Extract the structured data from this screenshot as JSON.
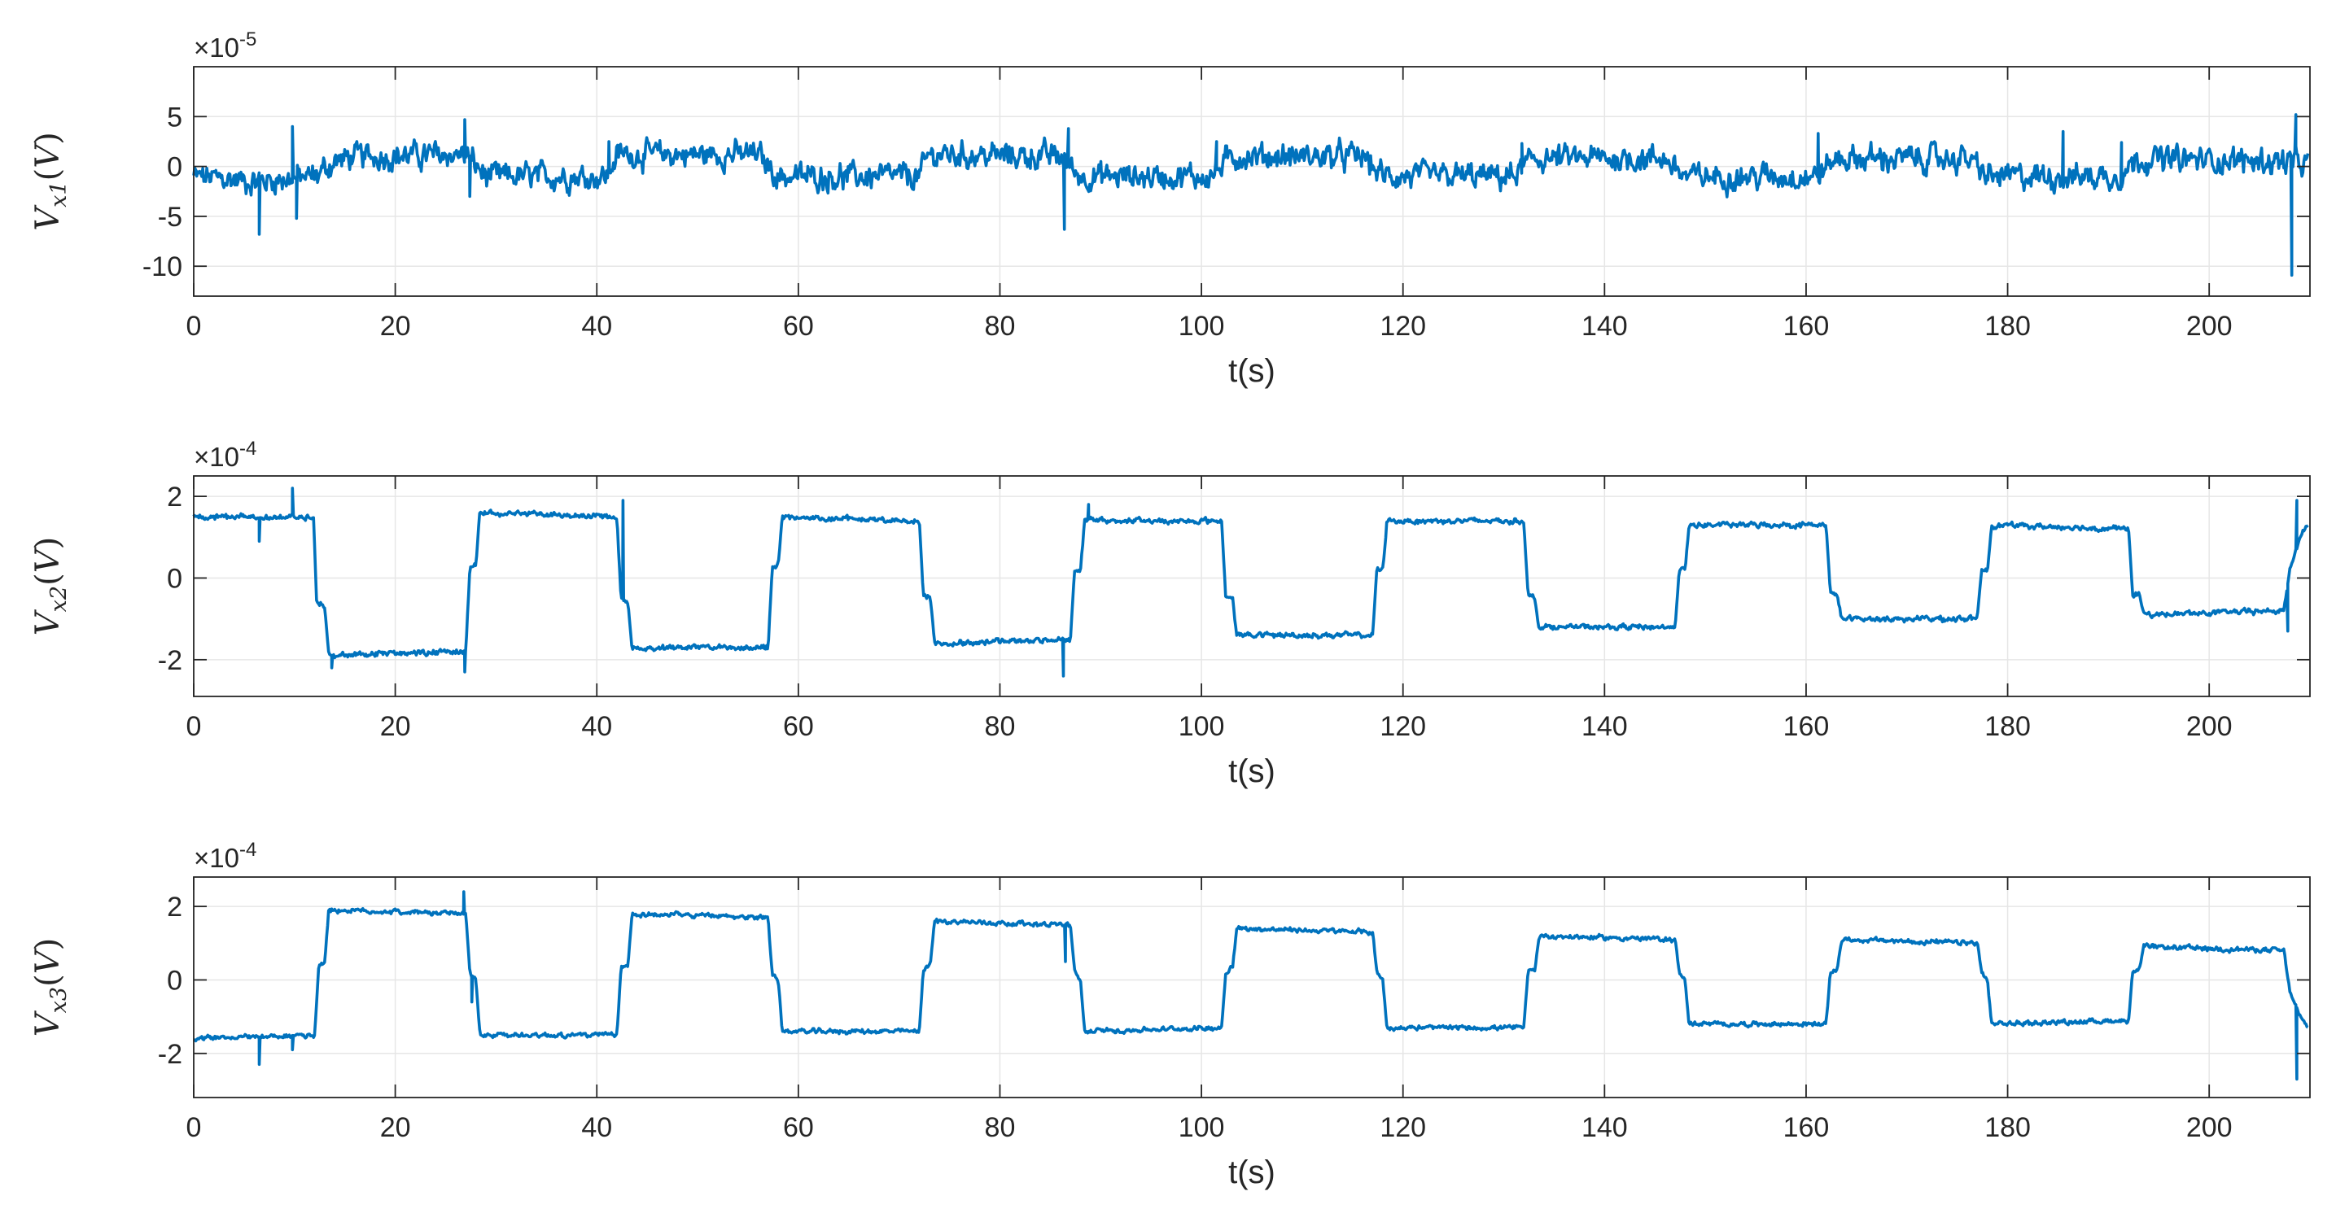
{
  "colors": {
    "line": "#0072BD",
    "axis": "#262626",
    "grid": "#e6e6e6",
    "background": "#ffffff"
  },
  "chart_data": [
    {
      "type": "line",
      "title": "",
      "xlabel": "t(s)",
      "ylabel": {
        "base": "V",
        "sub": "x1",
        "open": "(",
        "unit": "V",
        "close": ")"
      },
      "exponent": "×10",
      "exponent_power": "-5",
      "xlim": [
        0,
        210
      ],
      "ylim": [
        -13,
        10
      ],
      "xticks": [
        0,
        20,
        40,
        60,
        80,
        100,
        120,
        140,
        160,
        180,
        200
      ],
      "xtick_labels": [
        "0",
        "20",
        "40",
        "60",
        "80",
        "100",
        "120",
        "140",
        "160",
        "180",
        "200"
      ],
      "yticks": [
        -10,
        -5,
        0,
        5
      ],
      "ytick_labels": [
        "-10",
        "-5",
        "0",
        "5"
      ],
      "grid": true,
      "noise_amplitude": 1.8,
      "baseline": [
        [
          0,
          -1
        ],
        [
          6,
          -1.5
        ],
        [
          12,
          -1
        ],
        [
          14,
          0.5
        ],
        [
          16,
          1
        ],
        [
          27,
          1.2
        ],
        [
          29,
          -1
        ],
        [
          41,
          -1
        ],
        [
          42,
          1.2
        ],
        [
          56,
          1.2
        ],
        [
          58,
          -1
        ],
        [
          72,
          -1
        ],
        [
          73,
          1.2
        ],
        [
          86,
          1
        ],
        [
          88,
          -1
        ],
        [
          101,
          -1
        ],
        [
          103,
          1
        ],
        [
          116,
          1
        ],
        [
          118,
          -1
        ],
        [
          131,
          -1
        ],
        [
          133,
          0.8
        ],
        [
          146,
          0.8
        ],
        [
          148,
          -1
        ],
        [
          161,
          -1
        ],
        [
          163,
          0.8
        ],
        [
          176,
          0.8
        ],
        [
          178,
          -1
        ],
        [
          191,
          -1
        ],
        [
          193,
          0.8
        ],
        [
          208,
          0.5
        ],
        [
          210,
          0
        ]
      ],
      "spikes": [
        [
          6.5,
          -6.8
        ],
        [
          9.8,
          4
        ],
        [
          10.2,
          -5.2
        ],
        [
          26.9,
          4.7
        ],
        [
          27.4,
          -3
        ],
        [
          41.2,
          2.5
        ],
        [
          86.4,
          -6.3
        ],
        [
          86.8,
          3.8
        ],
        [
          101.5,
          2.5
        ],
        [
          131.8,
          2.3
        ],
        [
          161.2,
          3.3
        ],
        [
          185.5,
          3.5
        ],
        [
          191.3,
          2.4
        ],
        [
          208.2,
          -10.9
        ],
        [
          208.6,
          5.2
        ]
      ]
    },
    {
      "type": "line",
      "title": "",
      "xlabel": "t(s)",
      "ylabel": {
        "base": "V",
        "sub": "x2",
        "open": "(",
        "unit": "V",
        "close": ")"
      },
      "exponent": "×10",
      "exponent_power": "-4",
      "xlim": [
        0,
        210
      ],
      "ylim": [
        -2.9,
        2.5
      ],
      "xticks": [
        0,
        20,
        40,
        60,
        80,
        100,
        120,
        140,
        160,
        180,
        200
      ],
      "xtick_labels": [
        "0",
        "20",
        "40",
        "60",
        "80",
        "100",
        "120",
        "140",
        "160",
        "180",
        "200"
      ],
      "yticks": [
        -2,
        0,
        2
      ],
      "ytick_labels": [
        "-2",
        "0",
        "2"
      ],
      "grid": true,
      "noise_amplitude": 0.09,
      "baseline": [
        [
          0,
          1.5
        ],
        [
          11.9,
          1.5
        ],
        [
          12.2,
          -0.6
        ],
        [
          13,
          -0.7
        ],
        [
          13.4,
          -1.9
        ],
        [
          27,
          -1.8
        ],
        [
          27.4,
          0.2
        ],
        [
          28,
          0.3
        ],
        [
          28.4,
          1.6
        ],
        [
          42,
          1.5
        ],
        [
          42.4,
          -0.5
        ],
        [
          43.1,
          -0.6
        ],
        [
          43.5,
          -1.7
        ],
        [
          57,
          -1.7
        ],
        [
          57.4,
          0.2
        ],
        [
          58,
          0.3
        ],
        [
          58.4,
          1.5
        ],
        [
          72,
          1.4
        ],
        [
          72.4,
          -0.4
        ],
        [
          73.1,
          -0.5
        ],
        [
          73.5,
          -1.6
        ],
        [
          87,
          -1.5
        ],
        [
          87.4,
          0.2
        ],
        [
          88,
          0.2
        ],
        [
          88.4,
          1.4
        ],
        [
          102,
          1.4
        ],
        [
          102.4,
          -0.4
        ],
        [
          103.1,
          -0.5
        ],
        [
          103.5,
          -1.4
        ],
        [
          117,
          -1.4
        ],
        [
          117.4,
          0.2
        ],
        [
          118,
          0.2
        ],
        [
          118.4,
          1.4
        ],
        [
          132,
          1.4
        ],
        [
          132.4,
          -0.4
        ],
        [
          133.1,
          -0.5
        ],
        [
          133.5,
          -1.2
        ],
        [
          147,
          -1.2
        ],
        [
          147.4,
          0.2
        ],
        [
          148,
          0.2
        ],
        [
          148.4,
          1.3
        ],
        [
          162,
          1.3
        ],
        [
          162.4,
          -0.4
        ],
        [
          163.1,
          -0.4
        ],
        [
          163.5,
          -1.0
        ],
        [
          177,
          -1.0
        ],
        [
          177.4,
          0.2
        ],
        [
          178,
          0.2
        ],
        [
          178.4,
          1.3
        ],
        [
          192,
          1.2
        ],
        [
          192.4,
          -0.4
        ],
        [
          193.1,
          -0.4
        ],
        [
          193.5,
          -0.9
        ],
        [
          207.4,
          -0.8
        ],
        [
          208,
          0.2
        ],
        [
          209,
          1.0
        ],
        [
          210,
          1.4
        ]
      ],
      "spikes": [
        [
          6.5,
          0.9
        ],
        [
          9.8,
          2.2
        ],
        [
          13.7,
          -2.2
        ],
        [
          26.9,
          -2.3
        ],
        [
          42.6,
          1.9
        ],
        [
          86.3,
          -2.4
        ],
        [
          88.8,
          1.8
        ],
        [
          207.8,
          -1.3
        ],
        [
          208.7,
          1.9
        ]
      ]
    },
    {
      "type": "line",
      "title": "",
      "xlabel": "t(s)",
      "ylabel": {
        "base": "V",
        "sub": "x3",
        "open": "(",
        "unit": "V",
        "close": ")"
      },
      "exponent": "×10",
      "exponent_power": "-4",
      "xlim": [
        0,
        210
      ],
      "ylim": [
        -3.2,
        2.8
      ],
      "xticks": [
        0,
        20,
        40,
        60,
        80,
        100,
        120,
        140,
        160,
        180,
        200
      ],
      "xtick_labels": [
        "0",
        "20",
        "40",
        "60",
        "80",
        "100",
        "120",
        "140",
        "160",
        "180",
        "200"
      ],
      "yticks": [
        -2,
        0,
        2
      ],
      "ytick_labels": [
        "-2",
        "0",
        "2"
      ],
      "grid": true,
      "noise_amplitude": 0.09,
      "baseline": [
        [
          0,
          -1.6
        ],
        [
          12,
          -1.5
        ],
        [
          12.4,
          0.4
        ],
        [
          13,
          0.5
        ],
        [
          13.4,
          1.9
        ],
        [
          27,
          1.8
        ],
        [
          27.4,
          0.2
        ],
        [
          28,
          0.0
        ],
        [
          28.4,
          -1.5
        ],
        [
          42,
          -1.5
        ],
        [
          42.4,
          0.3
        ],
        [
          43.1,
          0.4
        ],
        [
          43.5,
          1.8
        ],
        [
          57,
          1.7
        ],
        [
          57.4,
          0.2
        ],
        [
          58,
          0.0
        ],
        [
          58.4,
          -1.4
        ],
        [
          72,
          -1.4
        ],
        [
          72.4,
          0.3
        ],
        [
          73.1,
          0.4
        ],
        [
          73.5,
          1.6
        ],
        [
          87,
          1.5
        ],
        [
          87.4,
          0.2
        ],
        [
          88,
          0.0
        ],
        [
          88.4,
          -1.4
        ],
        [
          102,
          -1.3
        ],
        [
          102.4,
          0.2
        ],
        [
          103.1,
          0.4
        ],
        [
          103.5,
          1.4
        ],
        [
          117,
          1.3
        ],
        [
          117.4,
          0.2
        ],
        [
          118,
          0.0
        ],
        [
          118.4,
          -1.3
        ],
        [
          132,
          -1.3
        ],
        [
          132.4,
          0.2
        ],
        [
          133.1,
          0.3
        ],
        [
          133.5,
          1.2
        ],
        [
          147,
          1.1
        ],
        [
          147.4,
          0.2
        ],
        [
          148,
          0.0
        ],
        [
          148.4,
          -1.2
        ],
        [
          162,
          -1.2
        ],
        [
          162.4,
          0.2
        ],
        [
          163.1,
          0.3
        ],
        [
          163.5,
          1.1
        ],
        [
          177,
          1.0
        ],
        [
          177.4,
          0.2
        ],
        [
          178,
          0.0
        ],
        [
          178.4,
          -1.2
        ],
        [
          192,
          -1.1
        ],
        [
          192.4,
          0.2
        ],
        [
          193.1,
          0.3
        ],
        [
          193.5,
          0.9
        ],
        [
          207.4,
          0.8
        ],
        [
          208,
          -0.3
        ],
        [
          209,
          -1.0
        ],
        [
          210,
          -1.4
        ]
      ],
      "spikes": [
        [
          6.5,
          -2.3
        ],
        [
          9.8,
          -1.9
        ],
        [
          26.8,
          2.4
        ],
        [
          27.6,
          -0.6
        ],
        [
          86.5,
          0.5
        ],
        [
          208.7,
          -2.7
        ]
      ]
    }
  ]
}
